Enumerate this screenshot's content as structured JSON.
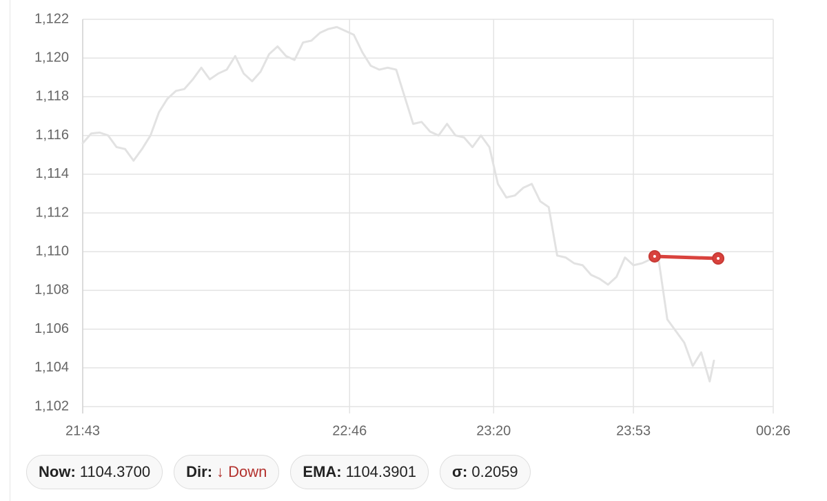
{
  "chart_data": {
    "type": "line",
    "x": [
      "21:43",
      "21:45",
      "21:47",
      "21:49",
      "21:51",
      "21:53",
      "21:55",
      "21:57",
      "21:59",
      "22:01",
      "22:03",
      "22:05",
      "22:07",
      "22:09",
      "22:11",
      "22:13",
      "22:15",
      "22:17",
      "22:19",
      "22:21",
      "22:23",
      "22:25",
      "22:27",
      "22:29",
      "22:31",
      "22:33",
      "22:35",
      "22:37",
      "22:39",
      "22:41",
      "22:43",
      "22:45",
      "22:47",
      "22:49",
      "22:51",
      "22:53",
      "22:55",
      "22:57",
      "22:59",
      "23:01",
      "23:03",
      "23:05",
      "23:07",
      "23:09",
      "23:11",
      "23:13",
      "23:15",
      "23:17",
      "23:19",
      "23:21",
      "23:23",
      "23:25",
      "23:27",
      "23:29",
      "23:31",
      "23:33",
      "23:35",
      "23:37",
      "23:39",
      "23:41",
      "23:43",
      "23:45",
      "23:47",
      "23:49",
      "23:51",
      "23:53",
      "23:55",
      "23:57",
      "23:59",
      "00:01",
      "00:03",
      "00:05",
      "00:07",
      "00:09",
      "00:11",
      "00:12"
    ],
    "series": [
      {
        "color": "#e2e2e2",
        "values": [
          1115.6,
          1116.1,
          1116.15,
          1116.0,
          1115.4,
          1115.3,
          1114.7,
          1115.3,
          1116.0,
          1117.2,
          1117.9,
          1118.3,
          1118.4,
          1118.9,
          1119.5,
          1118.9,
          1119.2,
          1119.4,
          1120.1,
          1119.2,
          1118.8,
          1119.3,
          1120.2,
          1120.6,
          1120.1,
          1119.9,
          1120.8,
          1120.9,
          1121.3,
          1121.5,
          1121.6,
          1121.4,
          1121.2,
          1120.3,
          1119.6,
          1119.4,
          1119.5,
          1119.4,
          1118.0,
          1116.6,
          1116.7,
          1116.2,
          1116.0,
          1116.6,
          1116.0,
          1115.9,
          1115.4,
          1116.0,
          1115.4,
          1113.5,
          1112.8,
          1112.9,
          1113.3,
          1113.5,
          1112.6,
          1112.3,
          1109.8,
          1109.7,
          1109.4,
          1109.3,
          1108.8,
          1108.6,
          1108.3,
          1108.7,
          1109.7,
          1109.3,
          1109.4,
          1109.6,
          1109.5,
          1106.5,
          1105.9,
          1105.3,
          1104.1,
          1104.8,
          1103.3,
          1104.37
        ]
      },
      {
        "color": "#d9423d",
        "x": [
          "23:58",
          "00:13"
        ],
        "values": [
          1109.76,
          1109.65
        ],
        "markers": true
      }
    ],
    "xlim": [
      "21:43",
      "00:26"
    ],
    "xticks": [
      "21:43",
      "22:46",
      "23:20",
      "23:53",
      "00:26"
    ],
    "ylim": [
      1102,
      1122
    ],
    "yticks": [
      {
        "value": 1102,
        "label": "1,102"
      },
      {
        "value": 1104,
        "label": "1,104"
      },
      {
        "value": 1106,
        "label": "1,106"
      },
      {
        "value": 1108,
        "label": "1,108"
      },
      {
        "value": 1110,
        "label": "1,110"
      },
      {
        "value": 1112,
        "label": "1,112"
      },
      {
        "value": 1114,
        "label": "1,114"
      },
      {
        "value": 1116,
        "label": "1,116"
      },
      {
        "value": 1118,
        "label": "1,118"
      },
      {
        "value": 1120,
        "label": "1,120"
      },
      {
        "value": 1122,
        "label": "1,122"
      }
    ],
    "grid": true
  },
  "stats": [
    {
      "label": "Now:",
      "value": "1104.3700"
    },
    {
      "label": "Dir:",
      "value": "↓ Down",
      "color": "#b3322e"
    },
    {
      "label": "EMA:",
      "value": "1104.3901"
    },
    {
      "label": "σ:",
      "value": "0.2059"
    }
  ]
}
